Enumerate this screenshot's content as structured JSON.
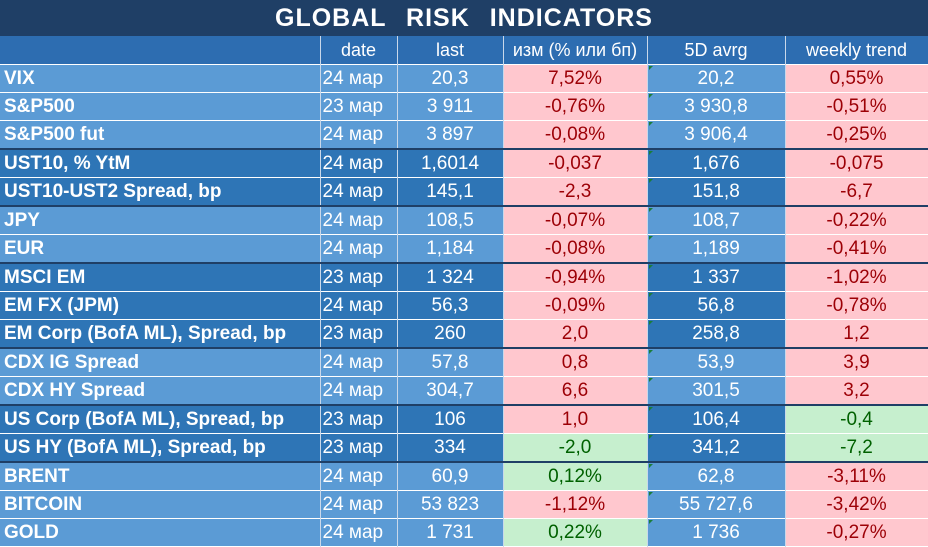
{
  "title": "GLOBAL   RISK   INDICATORS",
  "headers": [
    "",
    "date",
    "last",
    "изм (% или бп)",
    "5D avrg",
    "weekly trend"
  ],
  "colors": {
    "title_bg": "#1f3f66",
    "header_bg": "#2d6db1",
    "row_light": "#5b9bd5",
    "row_dark": "#2e75b6",
    "negative_fill": "#ffc7ce",
    "negative_text": "#9c0006",
    "positive_fill": "#c6efce",
    "positive_text": "#006100"
  },
  "rows": [
    {
      "name": "VIX",
      "date": "24 мар",
      "last": "20,3",
      "change": "7,52%",
      "avg": "20,2",
      "trend": "0,55%",
      "change_style": "red",
      "trend_style": "red"
    },
    {
      "name": "S&P500",
      "date": "23 мар",
      "last": "3 911",
      "change": "-0,76%",
      "avg": "3 930,8",
      "trend": "-0,51%",
      "change_style": "red",
      "trend_style": "red"
    },
    {
      "name": "S&P500 fut",
      "date": "24 мар",
      "last": "3 897",
      "change": "-0,08%",
      "avg": "3 906,4",
      "trend": "-0,25%",
      "change_style": "red",
      "trend_style": "red"
    },
    {
      "name": "UST10, % YtM",
      "date": "24 мар",
      "last": "1,6014",
      "change": "-0,037",
      "avg": "1,676",
      "trend": "-0,075",
      "change_style": "red",
      "trend_style": "red"
    },
    {
      "name": "UST10-UST2 Spread, bp",
      "date": "24 мар",
      "last": "145,1",
      "change": "-2,3",
      "avg": "151,8",
      "trend": "-6,7",
      "change_style": "red",
      "trend_style": "red"
    },
    {
      "name": "JPY",
      "date": "24 мар",
      "last": "108,5",
      "change": "-0,07%",
      "avg": "108,7",
      "trend": "-0,22%",
      "change_style": "red",
      "trend_style": "red"
    },
    {
      "name": "EUR",
      "date": "24 мар",
      "last": "1,184",
      "change": "-0,08%",
      "avg": "1,189",
      "trend": "-0,41%",
      "change_style": "red",
      "trend_style": "red"
    },
    {
      "name": "MSCI EM",
      "date": "23 мар",
      "last": "1 324",
      "change": "-0,94%",
      "avg": "1 337",
      "trend": "-1,02%",
      "change_style": "red",
      "trend_style": "red"
    },
    {
      "name": "EM FX (JPM)",
      "date": "24 мар",
      "last": "56,3",
      "change": "-0,09%",
      "avg": "56,8",
      "trend": "-0,78%",
      "change_style": "red",
      "trend_style": "red"
    },
    {
      "name": "EM Corp (BofA ML), Spread, bp",
      "date": "23 мар",
      "last": "260",
      "change": "2,0",
      "avg": "258,8",
      "trend": "1,2",
      "change_style": "red",
      "trend_style": "red"
    },
    {
      "name": "CDX IG Spread",
      "date": "24 мар",
      "last": "57,8",
      "change": "0,8",
      "avg": "53,9",
      "trend": "3,9",
      "change_style": "red",
      "trend_style": "red"
    },
    {
      "name": "CDX HY Spread",
      "date": "24 мар",
      "last": "304,7",
      "change": "6,6",
      "avg": "301,5",
      "trend": "3,2",
      "change_style": "red",
      "trend_style": "red"
    },
    {
      "name": "US Corp (BofA ML), Spread, bp",
      "date": "23 мар",
      "last": "106",
      "change": "1,0",
      "avg": "106,4",
      "trend": "-0,4",
      "change_style": "red",
      "trend_style": "green"
    },
    {
      "name": "US HY (BofA ML), Spread, bp",
      "date": "23 мар",
      "last": "334",
      "change": "-2,0",
      "avg": "341,2",
      "trend": "-7,2",
      "change_style": "green",
      "trend_style": "green"
    },
    {
      "name": "BRENT",
      "date": "24 мар",
      "last": "60,9",
      "change": "0,12%",
      "avg": "62,8",
      "trend": "-3,11%",
      "change_style": "green",
      "trend_style": "red"
    },
    {
      "name": "BITCOIN",
      "date": "24 мар",
      "last": "53 823",
      "change": "-1,12%",
      "avg": "55 727,6",
      "trend": "-3,42%",
      "change_style": "red",
      "trend_style": "red"
    },
    {
      "name": "GOLD",
      "date": "24 мар",
      "last": "1 731",
      "change": "0,22%",
      "avg": "1 736",
      "trend": "-0,27%",
      "change_style": "green",
      "trend_style": "red"
    }
  ]
}
